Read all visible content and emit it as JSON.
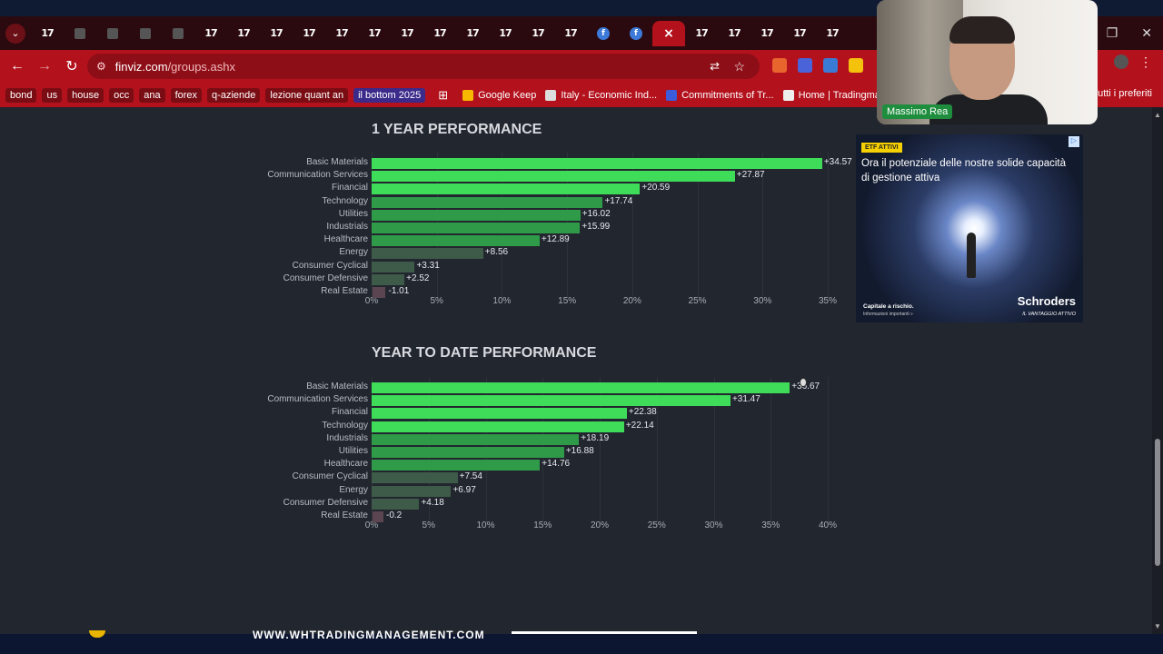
{
  "browser": {
    "url_domain": "finviz.com",
    "url_path": "/groups.ashx",
    "tabs": [
      {
        "icon": "tradingview-icon",
        "glyph": "17"
      },
      {
        "icon": "chart-tab-icon",
        "glyph": ""
      },
      {
        "icon": "chart-tab-icon",
        "glyph": ""
      },
      {
        "icon": "chart-tab-icon",
        "glyph": ""
      },
      {
        "icon": "chart-tab-icon",
        "glyph": ""
      },
      {
        "icon": "tradingview-icon",
        "glyph": "17"
      },
      {
        "icon": "tradingview-icon",
        "glyph": "17"
      },
      {
        "icon": "tradingview-icon",
        "glyph": "17"
      },
      {
        "icon": "tradingview-icon",
        "glyph": "17"
      },
      {
        "icon": "tradingview-icon",
        "glyph": "17"
      },
      {
        "icon": "tradingview-icon",
        "glyph": "17"
      },
      {
        "icon": "tradingview-icon",
        "glyph": "17"
      },
      {
        "icon": "tradingview-icon",
        "glyph": "17"
      },
      {
        "icon": "tradingview-icon",
        "glyph": "17"
      },
      {
        "icon": "tradingview-icon",
        "glyph": "17"
      },
      {
        "icon": "tradingview-icon",
        "glyph": "17"
      },
      {
        "icon": "tradingview-icon",
        "glyph": "17"
      },
      {
        "icon": "finviz-icon",
        "glyph": "f"
      },
      {
        "icon": "finviz-icon",
        "glyph": "f"
      },
      {
        "icon": "close-icon",
        "glyph": "×",
        "active": true
      },
      {
        "icon": "tradingview-icon",
        "glyph": "17"
      },
      {
        "icon": "tradingview-icon",
        "glyph": "17"
      },
      {
        "icon": "tradingview-icon",
        "glyph": "17"
      },
      {
        "icon": "tradingview-icon",
        "glyph": "17"
      },
      {
        "icon": "tradingview-icon",
        "glyph": "17"
      }
    ],
    "bookmark_chips": [
      "bond",
      "us",
      "house",
      "occ",
      "ana",
      "forex",
      "q-aziende",
      "lezione quant an",
      "il bottom 2025"
    ],
    "bookmark_links": [
      {
        "label": "Google Keep",
        "color": "#f6b800"
      },
      {
        "label": "Italy - Economic Ind...",
        "color": "#dddddd"
      },
      {
        "label": "Commitments of Tr...",
        "color": "#3b5bdb"
      },
      {
        "label": "Home | Tradingman...",
        "color": "#eeeeee"
      }
    ],
    "bookmarks_right": "Tutti i preferiti"
  },
  "chart_data": [
    {
      "type": "bar",
      "title": "1 YEAR PERFORMANCE",
      "categories": [
        "Basic Materials",
        "Communication Services",
        "Financial",
        "Technology",
        "Utilities",
        "Industrials",
        "Healthcare",
        "Energy",
        "Consumer Cyclical",
        "Consumer Defensive",
        "Real Estate"
      ],
      "values": [
        34.57,
        27.87,
        20.59,
        17.74,
        16.02,
        15.99,
        12.89,
        8.56,
        3.31,
        2.52,
        -1.01
      ],
      "value_labels": [
        "+34.57",
        "+27.87",
        "+20.59",
        "+17.74",
        "+16.02",
        "+15.99",
        "+12.89",
        "+8.56",
        "+3.31",
        "+2.52",
        "-1.01"
      ],
      "xticks": [
        "0%",
        "5%",
        "10%",
        "15%",
        "20%",
        "25%",
        "30%",
        "35%"
      ],
      "xlim": [
        0,
        35
      ],
      "orientation": "horizontal",
      "grid": true
    },
    {
      "type": "bar",
      "title": "YEAR TO DATE PERFORMANCE",
      "categories": [
        "Basic Materials",
        "Communication Services",
        "Financial",
        "Technology",
        "Industrials",
        "Utilities",
        "Healthcare",
        "Consumer Cyclical",
        "Energy",
        "Consumer Defensive",
        "Real Estate"
      ],
      "values": [
        36.67,
        31.47,
        22.38,
        22.14,
        18.19,
        16.88,
        14.76,
        7.54,
        6.97,
        4.18,
        -0.2
      ],
      "value_labels": [
        "+36.67",
        "+31.47",
        "+22.38",
        "+22.14",
        "+18.19",
        "+16.88",
        "+14.76",
        "+7.54",
        "+6.97",
        "+4.18",
        "-0.2"
      ],
      "xticks": [
        "0%",
        "5%",
        "10%",
        "15%",
        "20%",
        "25%",
        "30%",
        "35%",
        "40%"
      ],
      "xlim": [
        0,
        40
      ],
      "orientation": "horizontal",
      "grid": true
    }
  ],
  "ad": {
    "badge": "ETF ATTIVI",
    "headline": "Ora il potenziale delle nostre solide capacità di gestione attiva",
    "brand": "Schroders",
    "tagline": "IL VANTAGGIO ATTIVO",
    "risk": "Capitale a rischio.",
    "info": "Informazioni importanti »"
  },
  "webcam": {
    "name": "Massimo Rea"
  },
  "footer": {
    "text": "WWW.WHTRADINGMANAGEMENT.COM"
  },
  "colors": {
    "bar_strong": "#3fdc5a",
    "bar_mid": "#2f9a48",
    "bar_weak": "#3e5a48",
    "bar_negative": "#5a4550",
    "browser_accent": "#b3121d"
  }
}
